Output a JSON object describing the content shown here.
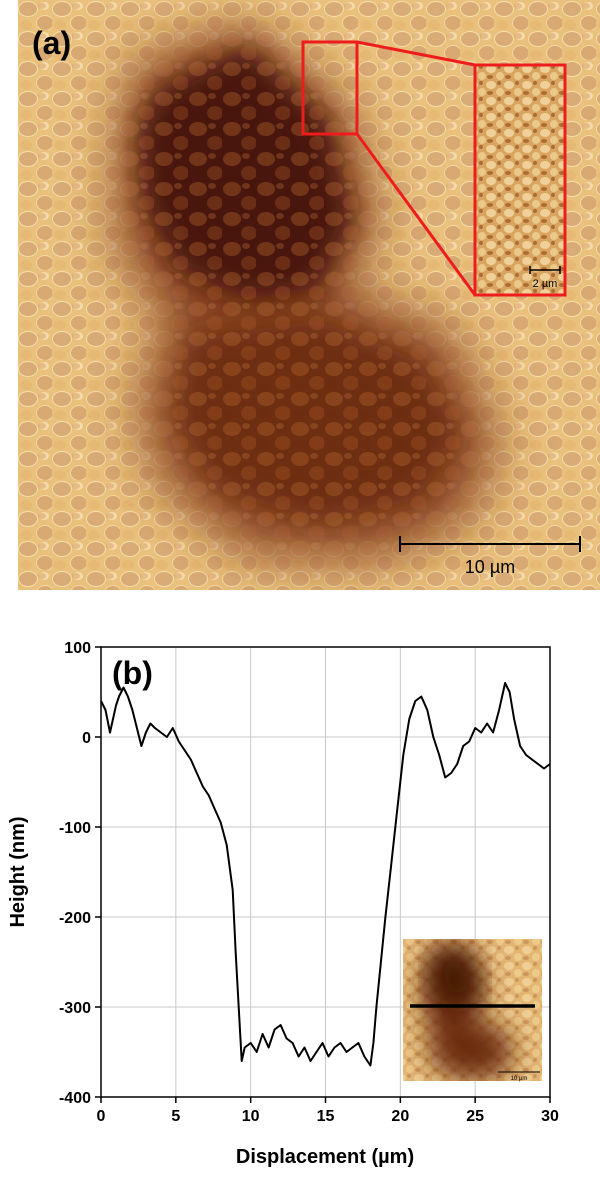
{
  "panel_a": {
    "label": "(a)",
    "scale_bar_label": "10 µm",
    "inset_scale_bar_label": "2 µm",
    "colors": {
      "highlight_box": "#ee1c1c",
      "light_surface": "#f1cf8d",
      "dark_pit": "#4a1707"
    }
  },
  "panel_b": {
    "label": "(b)",
    "inset_scale_label": "10 µm",
    "colors": {
      "line": "#000000",
      "grid": "#c8c8c8"
    }
  },
  "chart_data": {
    "type": "line",
    "title": "",
    "xlabel": "Displacement (µm)",
    "ylabel": "Height (nm)",
    "xlim": [
      0,
      30
    ],
    "ylim": [
      -400,
      100
    ],
    "xticks": [
      0,
      5,
      10,
      15,
      20,
      25,
      30
    ],
    "yticks": [
      100,
      0,
      -100,
      -200,
      -300,
      -400
    ],
    "grid": true,
    "series": [
      {
        "x": [
          0,
          0.3,
          0.6,
          0.8,
          1.0,
          1.2,
          1.5,
          1.8,
          2.1,
          2.4,
          2.7,
          3.0,
          3.3,
          3.6,
          4.0,
          4.4,
          4.8,
          5.2,
          5.6,
          6.0,
          6.4,
          6.8,
          7.2,
          7.6,
          8.0,
          8.4,
          8.8,
          9.0,
          9.2,
          9.4,
          9.6,
          10.0,
          10.4,
          10.8,
          11.2,
          11.6,
          12.0,
          12.4,
          12.8,
          13.2,
          13.6,
          14.0,
          14.4,
          14.8,
          15.2,
          15.6,
          16.0,
          16.4,
          16.8,
          17.2,
          17.6,
          18.0,
          18.2,
          18.4,
          18.7,
          19.0,
          19.4,
          19.8,
          20.2,
          20.6,
          21.0,
          21.4,
          21.8,
          22.2,
          22.6,
          23.0,
          23.4,
          23.8,
          24.2,
          24.6,
          25.0,
          25.4,
          25.8,
          26.2,
          26.6,
          27.0,
          27.3,
          27.6,
          28.0,
          28.4,
          28.8,
          29.2,
          29.6,
          30.0
        ],
        "values": [
          40,
          30,
          5,
          20,
          35,
          45,
          55,
          45,
          30,
          10,
          -10,
          5,
          15,
          10,
          5,
          0,
          10,
          -5,
          -15,
          -25,
          -40,
          -55,
          -65,
          -80,
          -95,
          -120,
          -170,
          -240,
          -300,
          -360,
          -345,
          -340,
          -350,
          -330,
          -345,
          -325,
          -320,
          -335,
          -340,
          -355,
          -345,
          -360,
          -350,
          -340,
          -355,
          -345,
          -340,
          -350,
          -345,
          -340,
          -355,
          -365,
          -340,
          -300,
          -250,
          -200,
          -140,
          -80,
          -20,
          20,
          40,
          45,
          30,
          0,
          -20,
          -45,
          -40,
          -30,
          -10,
          -5,
          10,
          5,
          15,
          5,
          30,
          60,
          50,
          20,
          -10,
          -20,
          -25,
          -30,
          -35,
          -30
        ]
      }
    ]
  }
}
